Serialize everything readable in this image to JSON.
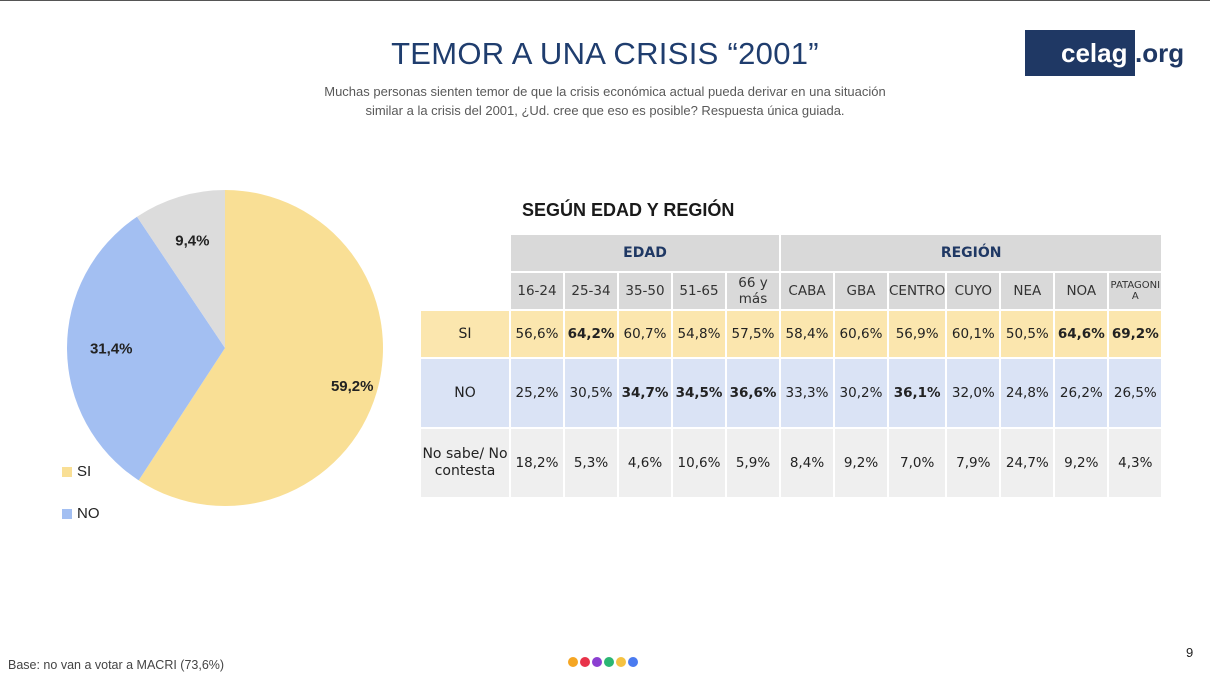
{
  "title": "TEMOR A UNA CRISIS “2001”",
  "subtitle_line1": "Muchas personas sienten temor de que la crisis económica actual pueda derivar en una situación",
  "subtitle_line2": "similar a la crisis del 2001, ¿Ud. cree que eso es posible?  Respuesta única guiada.",
  "logo": {
    "main": "celag",
    "suffix": ".org"
  },
  "table_title": "SEGÚN EDAD Y REGIÓN",
  "footer": "Base: no van a votar a MACRI (73,6%)",
  "page_number": "9",
  "dot_colors": [
    "#f5a623",
    "#e8334a",
    "#8b3fd1",
    "#2bb673",
    "#f5c242",
    "#4a7bf0"
  ],
  "chart_data": [
    {
      "type": "pie",
      "labels": [
        "SI",
        "NO",
        ""
      ],
      "values": [
        59.2,
        31.4,
        9.4
      ],
      "value_labels": [
        "59,2%",
        "31,4%",
        "9,4%"
      ],
      "colors": [
        "#f9df95",
        "#a3bff2",
        "#dcdcdc"
      ],
      "legend": [
        {
          "label": "SI",
          "color": "#f9df95"
        },
        {
          "label": "NO",
          "color": "#a3bff2"
        }
      ],
      "legend_position": "bottom-left"
    },
    {
      "type": "table",
      "groups": [
        {
          "label": "EDAD",
          "span": 5
        },
        {
          "label": "REGIÓN",
          "span": 7
        }
      ],
      "columns": [
        "16-24",
        "25-34",
        "35-50",
        "51-65",
        "66 y más",
        "CABA",
        "GBA",
        "CENTRO",
        "CUYO",
        "NEA",
        "NOA",
        "PATAGONIA"
      ],
      "rows": [
        {
          "label": "SI",
          "values": [
            "56,6%",
            "64,2%",
            "60,7%",
            "54,8%",
            "57,5%",
            "58,4%",
            "60,6%",
            "56,9%",
            "60,1%",
            "50,5%",
            "64,6%",
            "69,2%"
          ],
          "bold": [
            false,
            true,
            false,
            false,
            false,
            false,
            false,
            false,
            false,
            false,
            true,
            true
          ]
        },
        {
          "label": "NO",
          "values": [
            "25,2%",
            "30,5%",
            "34,7%",
            "34,5%",
            "36,6%",
            "33,3%",
            "30,2%",
            "36,1%",
            "32,0%",
            "24,8%",
            "26,2%",
            "26,5%"
          ],
          "bold": [
            false,
            false,
            true,
            true,
            true,
            false,
            false,
            true,
            false,
            false,
            false,
            false
          ]
        },
        {
          "label": "No sabe/ No contesta",
          "values": [
            "18,2%",
            "5,3%",
            "4,6%",
            "10,6%",
            "5,9%",
            "8,4%",
            "9,2%",
            "7,0%",
            "7,9%",
            "24,7%",
            "9,2%",
            "4,3%"
          ],
          "bold": [
            false,
            false,
            false,
            false,
            false,
            false,
            false,
            false,
            false,
            false,
            false,
            false
          ]
        }
      ]
    }
  ]
}
